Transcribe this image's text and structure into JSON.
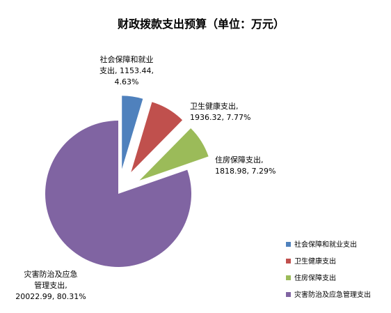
{
  "chart_data": {
    "type": "pie",
    "title": "财政拨款支出预算（单位：万元）",
    "legend_position": "bottom-right",
    "categories": [
      "社会保障和就业支出",
      "卫生健康支出",
      "住房保障支出",
      "灾害防治及应急管理支出"
    ],
    "values": [
      1153.44,
      1936.32,
      1818.98,
      20022.99
    ],
    "percentages": [
      "4.63%",
      "7.77%",
      "7.29%",
      "80.31%"
    ],
    "colors": [
      "#4F81BD",
      "#C0504D",
      "#9BBB59",
      "#8064A2"
    ],
    "data_labels": [
      [
        "社会保障和就业",
        "支出, 1153.44,",
        "4.63%"
      ],
      [
        "卫生健康支出,",
        "1936.32, 7.77%"
      ],
      [
        "住房保障支出,",
        "1818.98, 7.29%"
      ],
      [
        "灾害防治及应急",
        "管理支出,",
        "20022.99, 80.31%"
      ]
    ],
    "legend": [
      "社会保障和就业支出",
      "卫生健康支出",
      "住房保障支出",
      "灾害防治及应急管理支出"
    ]
  }
}
